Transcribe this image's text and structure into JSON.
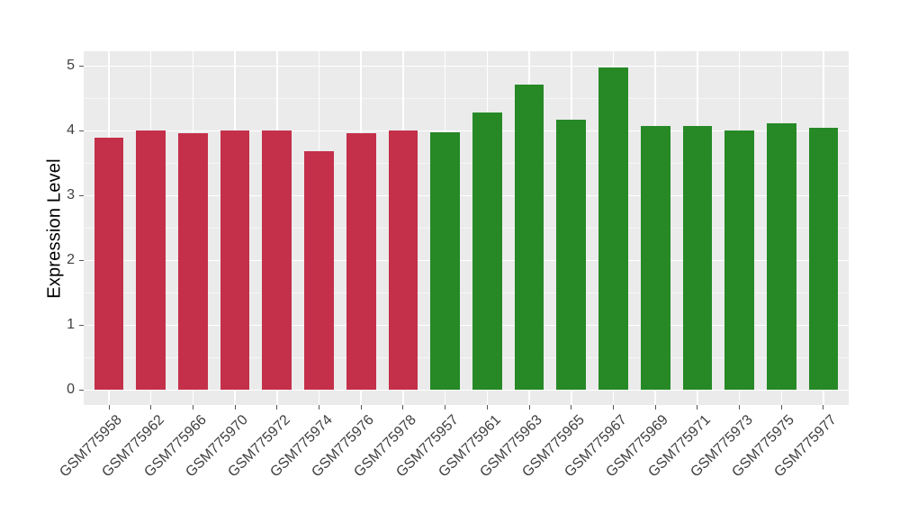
{
  "chart_data": {
    "type": "bar",
    "title": "",
    "xlabel": "",
    "ylabel": "Expression Level",
    "categories": [
      "GSM775958",
      "GSM775962",
      "GSM775966",
      "GSM775970",
      "GSM775972",
      "GSM775974",
      "GSM775976",
      "GSM775978",
      "GSM775957",
      "GSM775961",
      "GSM775963",
      "GSM775965",
      "GSM775967",
      "GSM775969",
      "GSM775971",
      "GSM775973",
      "GSM775975",
      "GSM775977"
    ],
    "values": [
      3.89,
      4.0,
      3.96,
      4.0,
      4.0,
      3.69,
      3.96,
      4.01,
      3.98,
      4.28,
      4.71,
      4.17,
      4.98,
      4.07,
      4.08,
      4.0,
      4.12,
      4.04
    ],
    "bar_colors": [
      "#C4304A",
      "#C4304A",
      "#C4304A",
      "#C4304A",
      "#C4304A",
      "#C4304A",
      "#C4304A",
      "#C4304A",
      "#268926",
      "#268926",
      "#268926",
      "#268926",
      "#268926",
      "#268926",
      "#268926",
      "#268926",
      "#268926",
      "#268926"
    ],
    "y_ticks": [
      0,
      1,
      2,
      3,
      4,
      5
    ],
    "y_tick_labels": [
      "0",
      "1",
      "2",
      "3",
      "4",
      "5"
    ],
    "ylim": [
      0,
      5
    ],
    "ylim_expanded": [
      -0.232,
      5.226
    ],
    "bar_width_fraction": 0.7,
    "grid": "on",
    "legend": "none",
    "colors": {
      "bar_left_group": "#C4304A",
      "bar_right_group": "#268926",
      "panel_bg": "#EBEBEB",
      "grid_major": "#FFFFFF",
      "grid_minor": "#F6F6F6",
      "axis_text": "#404040",
      "axis_title": "#000000",
      "tick_mark": "#555555",
      "background": "#FFFFFF"
    }
  }
}
